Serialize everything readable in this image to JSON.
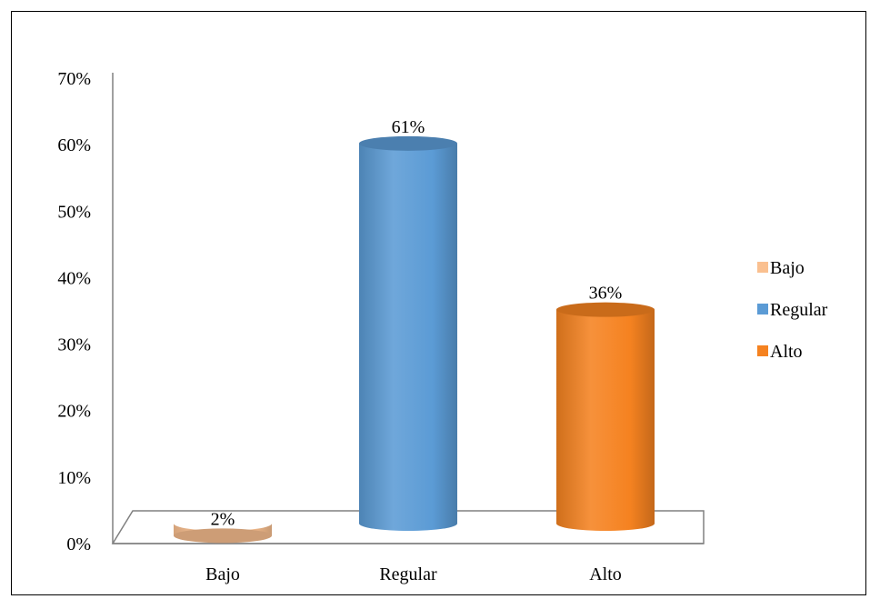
{
  "chart_data": {
    "type": "bar",
    "categories": [
      "Bajo",
      "Regular",
      "Alto"
    ],
    "values": [
      2,
      61,
      36
    ],
    "value_labels": [
      "2%",
      "61%",
      "36%"
    ],
    "colors": [
      "#FAC090",
      "#5B9BD5",
      "#F58220"
    ],
    "title": "",
    "xlabel": "",
    "ylabel": "",
    "ylim": [
      0,
      70
    ],
    "y_ticks": [
      0,
      10,
      20,
      30,
      40,
      50,
      60,
      70
    ],
    "y_tick_labels": [
      "0%",
      "10%",
      "20%",
      "30%",
      "40%",
      "50%",
      "60%",
      "70%"
    ],
    "grid": false,
    "legend": {
      "placement": "right",
      "entries": [
        "Bajo",
        "Regular",
        "Alto"
      ]
    },
    "style": "3d-cylinder"
  }
}
